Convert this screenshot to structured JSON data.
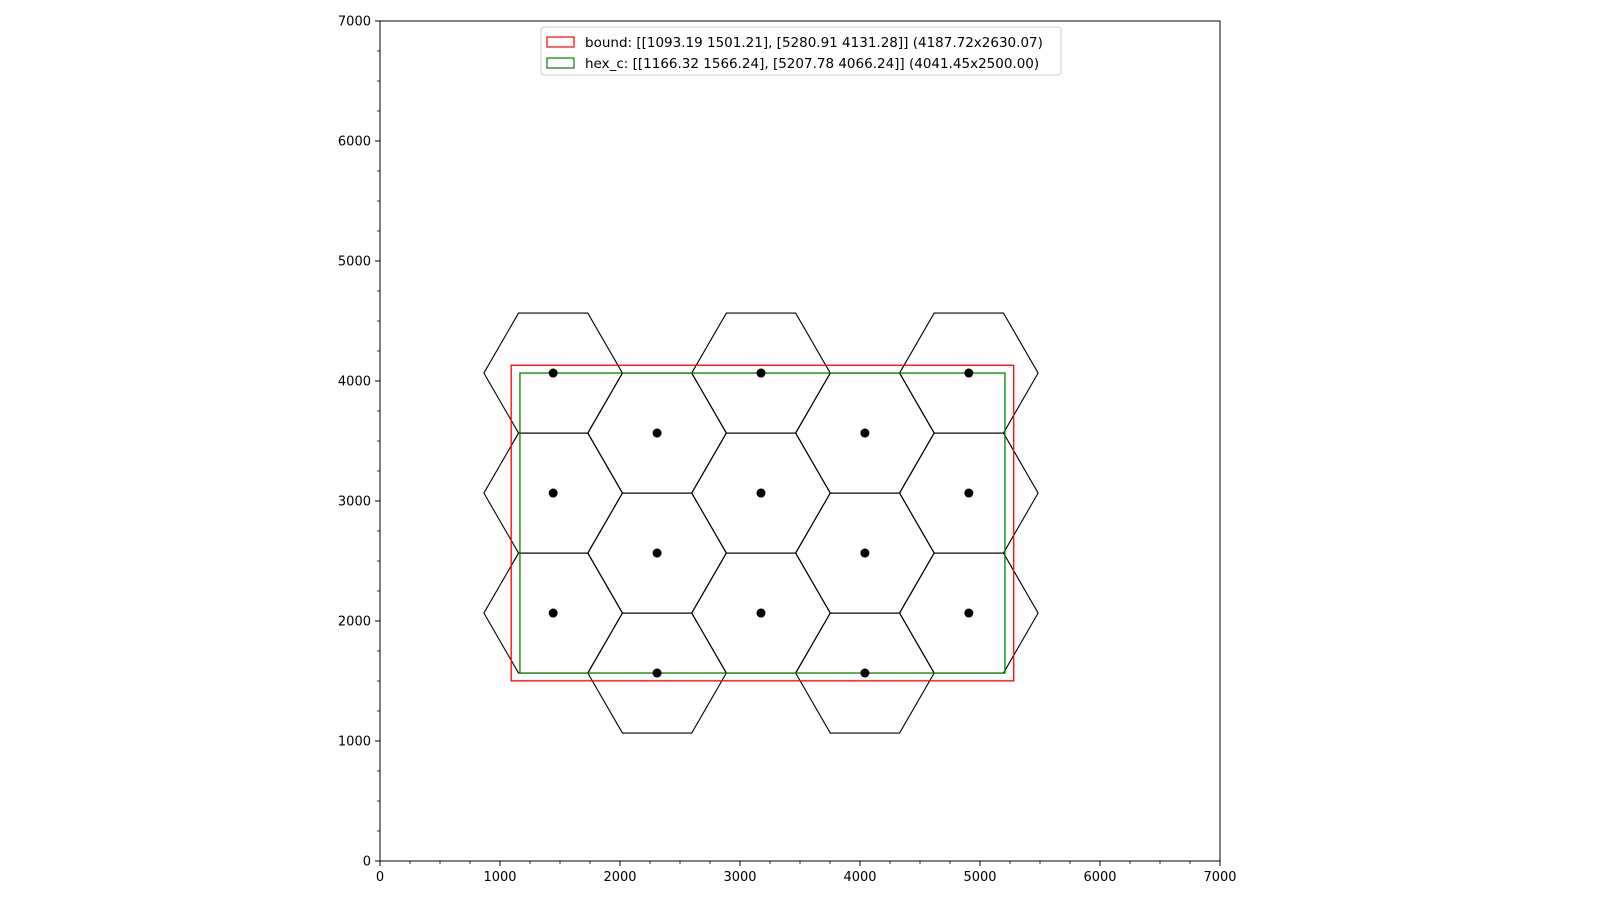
{
  "chart_data": {
    "type": "scatter",
    "title": "",
    "xlabel": "",
    "ylabel": "",
    "xlim": [
      0,
      7000
    ],
    "ylim": [
      0,
      7000
    ],
    "x_ticks": [
      "0",
      "1000",
      "2000",
      "3000",
      "4000",
      "5000",
      "6000",
      "7000"
    ],
    "y_ticks": [
      "0",
      "1000",
      "2000",
      "3000",
      "4000",
      "5000",
      "6000",
      "7000"
    ],
    "grid": false,
    "legend_position": "top-center",
    "legend": [
      {
        "label": "bound: [[1093.19 1501.21], [5280.91 4131.28]] (4187.72x2630.07)",
        "color": "#ff0000"
      },
      {
        "label": "hex_c: [[1166.32 1566.24], [5207.78 4066.24]] (4041.45x2500.00)",
        "color": "#008000"
      }
    ],
    "rectangles": [
      {
        "name": "bound",
        "x0": 1093.19,
        "y0": 1501.21,
        "x1": 5280.91,
        "y1": 4131.28,
        "color": "#ff0000"
      },
      {
        "name": "hex_c",
        "x0": 1166.32,
        "y0": 1566.24,
        "x1": 5207.78,
        "y1": 4066.24,
        "color": "#008000"
      }
    ],
    "hex_circumradius": 577.35,
    "hex_centers": [
      [
        1443.0,
        2066.24
      ],
      [
        1443.0,
        3066.24
      ],
      [
        1443.0,
        4066.24
      ],
      [
        2309.0,
        1566.24
      ],
      [
        2309.0,
        2566.24
      ],
      [
        2309.0,
        3566.24
      ],
      [
        3175.0,
        2066.24
      ],
      [
        3175.0,
        3066.24
      ],
      [
        3175.0,
        4066.24
      ],
      [
        4041.0,
        1566.24
      ],
      [
        4041.0,
        2566.24
      ],
      [
        4041.0,
        3566.24
      ],
      [
        4907.0,
        2066.24
      ],
      [
        4907.0,
        3066.24
      ],
      [
        4907.0,
        4066.24
      ]
    ],
    "colors": {
      "hex_edge": "#000000",
      "point": "#000000",
      "axes": "#000000"
    }
  }
}
